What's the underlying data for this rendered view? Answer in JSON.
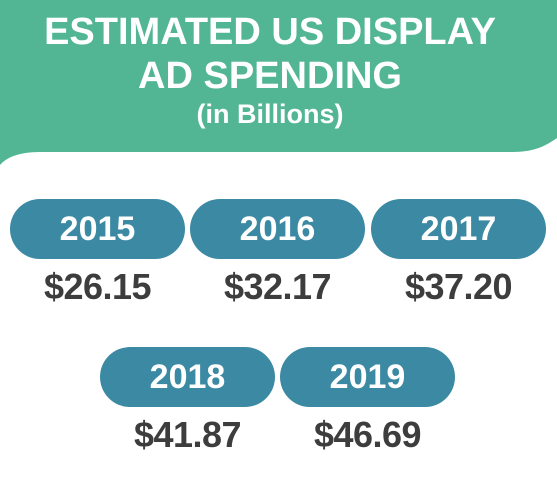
{
  "header": {
    "title_line1": "ESTIMATED US DISPLAY",
    "title_line2": "AD SPENDING",
    "subtitle": "(in Billions)"
  },
  "colors": {
    "banner": "#52b594",
    "pill": "#3b89a3",
    "value_text": "#3d3d3d",
    "background": "#ffffff"
  },
  "chart_data": {
    "type": "table",
    "title": "ESTIMATED US DISPLAY AD SPENDING",
    "subtitle": "(in Billions)",
    "categories": [
      "2015",
      "2016",
      "2017",
      "2018",
      "2019"
    ],
    "values": [
      26.15,
      32.17,
      37.2,
      41.87,
      46.69
    ],
    "labels": [
      "$26.15",
      "$32.17",
      "$37.20",
      "$41.87",
      "$46.69"
    ]
  }
}
